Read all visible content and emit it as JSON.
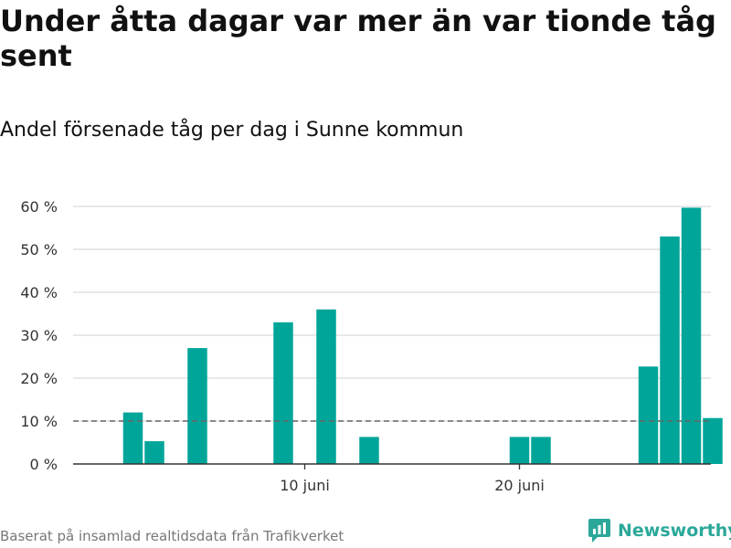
{
  "header": {
    "title": "Under åtta dagar var mer än var tionde tåg sent",
    "subtitle": "Andel försenade tåg per dag i Sunne kommun"
  },
  "footer": {
    "source": "Baserat på insamlad realtidsdata från Trafikverket",
    "brand": "Newsworthy"
  },
  "colors": {
    "bar": "#00a59a",
    "reference_line": "#666666",
    "grid": "#d9d9d9",
    "brand": "#2ba89a"
  },
  "chart_data": {
    "type": "bar",
    "title": "Under åtta dagar var mer än var tionde tåg sent",
    "subtitle": "Andel försenade tåg per dag i Sunne kommun",
    "xlabel": "",
    "ylabel": "",
    "x_start_day": 1,
    "x_end_day": 30,
    "days": [
      1,
      2,
      3,
      4,
      5,
      6,
      7,
      8,
      9,
      10,
      11,
      12,
      13,
      14,
      15,
      16,
      17,
      18,
      19,
      20,
      21,
      22,
      23,
      24,
      25,
      26,
      27,
      28,
      29,
      30
    ],
    "values": [
      0,
      12,
      5.3,
      0,
      27,
      0,
      0,
      0,
      33,
      0,
      36,
      0,
      6.3,
      0,
      0,
      0,
      0,
      0,
      0,
      6.3,
      6.3,
      0,
      0,
      0,
      0,
      22.7,
      53,
      59.7,
      10.7,
      0
    ],
    "ylim": [
      0,
      60
    ],
    "yticks": [
      0,
      10,
      20,
      30,
      40,
      50,
      60
    ],
    "ytick_labels": [
      "0 %",
      "10 %",
      "20 %",
      "30 %",
      "40 %",
      "50 %",
      "60 %"
    ],
    "xticks": [
      {
        "day": 10,
        "label": "10 juni"
      },
      {
        "day": 20,
        "label": "20 juni"
      }
    ],
    "reference_line": {
      "value": 10,
      "style": "dashed"
    },
    "grid": true
  }
}
